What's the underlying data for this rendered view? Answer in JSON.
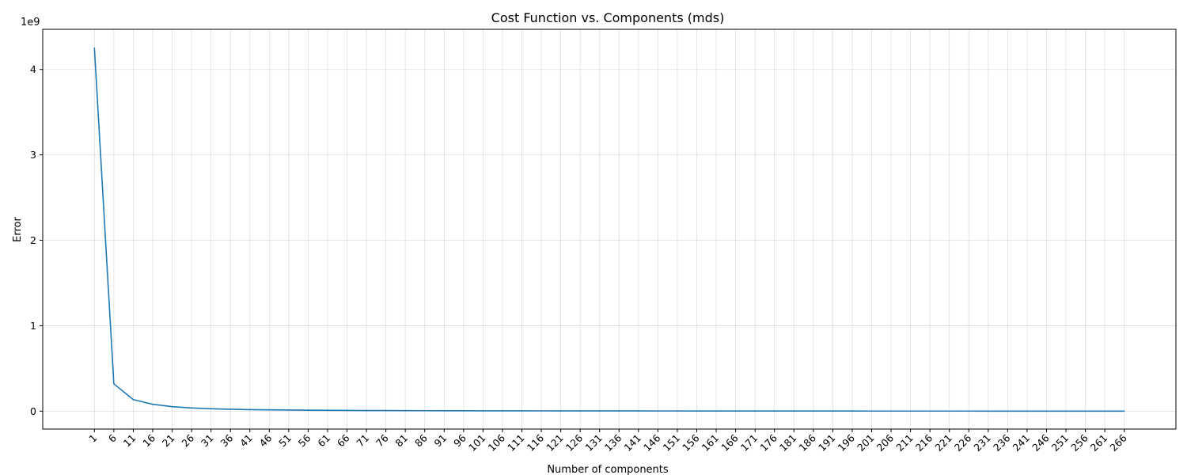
{
  "chart_data": {
    "type": "line",
    "title": "Cost Function vs. Components (mds)",
    "xlabel": "Number of components",
    "ylabel": "Error",
    "y_offset_label": "1e9",
    "grid": true,
    "legend": "none",
    "x_ticks": [
      1,
      6,
      11,
      16,
      21,
      26,
      31,
      36,
      41,
      46,
      51,
      56,
      61,
      66,
      71,
      76,
      81,
      86,
      91,
      96,
      101,
      106,
      111,
      116,
      121,
      126,
      131,
      136,
      141,
      146,
      151,
      156,
      161,
      166,
      171,
      176,
      181,
      186,
      191,
      196,
      201,
      206,
      211,
      216,
      221,
      226,
      231,
      236,
      241,
      246,
      251,
      256,
      261,
      266
    ],
    "y_ticks": [
      0,
      1,
      2,
      3,
      4
    ],
    "xlim": [
      -12.3,
      279.3
    ],
    "ylim": [
      -0.21,
      4.47
    ],
    "series": [
      {
        "color": "#1f77b4",
        "x": [
          1,
          6,
          11,
          16,
          21,
          26,
          31,
          36,
          41,
          46,
          51,
          56,
          61,
          66,
          71,
          76,
          81,
          86,
          91,
          96,
          101,
          106,
          111,
          116,
          121,
          126,
          131,
          136,
          141,
          146,
          151,
          156,
          161,
          166,
          171,
          176,
          181,
          186,
          191,
          196,
          201,
          206,
          211,
          216,
          221,
          226,
          231,
          236,
          241,
          246,
          251,
          256,
          261,
          266
        ],
        "y": [
          4.25,
          0.32,
          0.135,
          0.08,
          0.052,
          0.037,
          0.028,
          0.022,
          0.018,
          0.015,
          0.013,
          0.011,
          0.0095,
          0.0085,
          0.0076,
          0.0068,
          0.0061,
          0.0055,
          0.005,
          0.0046,
          0.0042,
          0.0038,
          0.0035,
          0.0032,
          0.003,
          0.0028,
          0.0026,
          0.0024,
          0.0022,
          0.002,
          0.0019,
          0.0018,
          0.0017,
          0.0016,
          0.0015,
          0.0014,
          0.0013,
          0.0012,
          0.0011,
          0.001,
          0.00095,
          0.0009,
          0.00085,
          0.0008,
          0.00075,
          0.0007,
          0.00065,
          0.0006,
          0.00055,
          0.0005,
          0.00045,
          0.0004,
          0.00035,
          0.0003
        ]
      }
    ]
  }
}
